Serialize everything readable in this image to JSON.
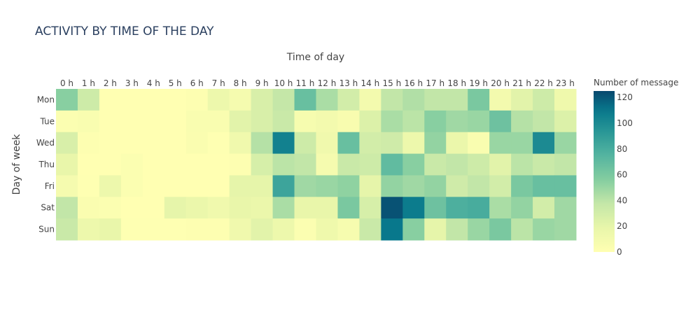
{
  "chart_data": {
    "type": "heatmap",
    "title": "ACTIVITY BY TIME OF THE DAY",
    "xlabel": "Time of day",
    "ylabel": "Day of week",
    "x_categories": [
      "0 h",
      "1 h",
      "2 h",
      "3 h",
      "4 h",
      "5 h",
      "6 h",
      "7 h",
      "8 h",
      "9 h",
      "10 h",
      "11 h",
      "12 h",
      "13 h",
      "14 h",
      "15 h",
      "16 h",
      "17 h",
      "18 h",
      "19 h",
      "20 h",
      "21 h",
      "22 h",
      "23 h"
    ],
    "y_categories": [
      "Mon",
      "Tue",
      "Wed",
      "Thu",
      "Fri",
      "Sat",
      "Sun"
    ],
    "z": [
      [
        55,
        33,
        0,
        0,
        0,
        0,
        2,
        15,
        8,
        27,
        37,
        67,
        45,
        30,
        10,
        38,
        43,
        38,
        38,
        60,
        10,
        22,
        33,
        13
      ],
      [
        3,
        5,
        0,
        0,
        0,
        0,
        5,
        5,
        22,
        27,
        35,
        7,
        10,
        6,
        25,
        45,
        40,
        55,
        48,
        50,
        65,
        42,
        38,
        25
      ],
      [
        27,
        2,
        0,
        0,
        0,
        0,
        4,
        1,
        12,
        42,
        105,
        33,
        12,
        67,
        30,
        32,
        15,
        52,
        16,
        5,
        50,
        50,
        100,
        50
      ],
      [
        18,
        0,
        0,
        3,
        0,
        0,
        0,
        0,
        2,
        28,
        40,
        38,
        8,
        35,
        33,
        70,
        55,
        35,
        38,
        33,
        22,
        40,
        35,
        38
      ],
      [
        8,
        1,
        15,
        3,
        0,
        0,
        0,
        0,
        20,
        20,
        85,
        48,
        50,
        53,
        20,
        52,
        48,
        52,
        32,
        38,
        30,
        60,
        67,
        67
      ],
      [
        38,
        4,
        3,
        0,
        0,
        20,
        16,
        12,
        18,
        16,
        45,
        18,
        18,
        60,
        28,
        122,
        108,
        65,
        78,
        80,
        45,
        52,
        30,
        48
      ],
      [
        35,
        15,
        18,
        1,
        1,
        1,
        2,
        2,
        12,
        22,
        15,
        3,
        13,
        7,
        35,
        110,
        55,
        20,
        38,
        50,
        60,
        40,
        50,
        48
      ]
    ],
    "colorbar": {
      "title": "Number of message",
      "range": [
        0,
        125
      ],
      "ticks": [
        0,
        20,
        40,
        60,
        80,
        100,
        120
      ],
      "tick_labels": [
        "0",
        "20",
        "40",
        "60",
        "80",
        "100",
        "120"
      ]
    },
    "colorscale": "YlGnBu",
    "x_axis_side": "top",
    "grid": false
  }
}
